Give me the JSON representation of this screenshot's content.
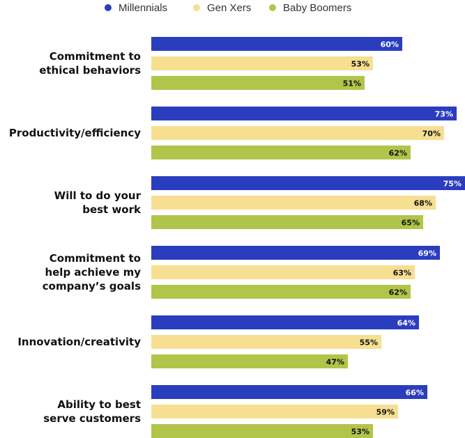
{
  "chart_data": {
    "type": "bar",
    "orientation": "horizontal",
    "categories": [
      [
        "Commitment to",
        "ethical behaviors"
      ],
      [
        "Productivity/efficiency"
      ],
      [
        "Will to do your",
        "best work"
      ],
      [
        "Commitment to",
        "help achieve my",
        "company’s goals"
      ],
      [
        "Innovation/creativity"
      ],
      [
        "Ability to best",
        "serve customers"
      ]
    ],
    "series": [
      {
        "name": "Millennials",
        "color": "#2b3dbf",
        "label_color": "#ffffff",
        "values": [
          60,
          73,
          75,
          69,
          64,
          66
        ]
      },
      {
        "name": "Gen Xers",
        "color": "#f6df91",
        "label_color": "#111111",
        "values": [
          53,
          70,
          68,
          63,
          55,
          59
        ]
      },
      {
        "name": "Baby Boomers",
        "color": "#b1c54a",
        "label_color": "#111111",
        "values": [
          51,
          62,
          65,
          62,
          47,
          53
        ]
      }
    ],
    "value_suffix": "%",
    "xlim": [
      0,
      75
    ],
    "legend_position": "top",
    "grid": false
  }
}
